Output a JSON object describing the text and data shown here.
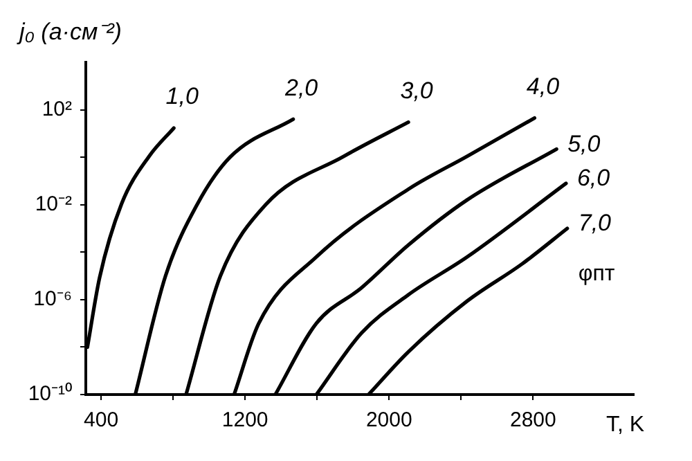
{
  "chart_data": {
    "type": "line",
    "ylabel": "j₀ (a·см⁻²)",
    "xlabel": "T, K",
    "log": "y",
    "grid": false,
    "legend": false,
    "marker": "none",
    "line_style": "solid",
    "xlim": [
      315,
      3360
    ],
    "xticks": [
      400,
      {
        "value": 800,
        "label": null
      },
      1200,
      {
        "value": 1600,
        "label": null
      },
      2000,
      {
        "value": 2400,
        "label": null
      },
      2800
    ],
    "ylim": [
      1e-10,
      10000.0
    ],
    "yticks": [
      {
        "value": 1e-10,
        "label": "10⁻¹⁰"
      },
      {
        "value": 1e-08,
        "label": null
      },
      {
        "value": 1e-06,
        "label": "10⁻⁶"
      },
      {
        "value": 0.0001,
        "label": null
      },
      {
        "value": 0.01,
        "label": "10⁻²"
      },
      {
        "value": 1,
        "label": null
      },
      {
        "value": 100,
        "label": "10²"
      }
    ],
    "annotations": [
      "φпт"
    ],
    "series": [
      {
        "name": "1,0",
        "color": "#000000",
        "x": [
          324,
          392,
          514,
          667,
          804
        ],
        "values": [
          1e-08,
          8.7e-06,
          0.011,
          1.1,
          17
        ]
      },
      {
        "name": "2,0",
        "color": "#000000",
        "x": [
          590,
          758,
          933,
          1116,
          1467
        ],
        "values": [
          1e-10,
          1e-05,
          0.01,
          1,
          40
        ]
      },
      {
        "name": "3,0",
        "color": "#000000",
        "x": [
          872,
          1063,
          1314,
          1749,
          2107
        ],
        "values": [
          1e-10,
          1e-05,
          0.01,
          1.1,
          30
        ]
      },
      {
        "name": "4,0",
        "color": "#000000",
        "x": [
          1139,
          1276,
          1596,
          2107,
          2434,
          2808
        ],
        "values": [
          1e-10,
          1e-07,
          6.3e-05,
          0.045,
          1.1,
          45
        ]
      },
      {
        "name": "5,0",
        "color": "#000000",
        "x": [
          1368,
          1596,
          1848,
          2107,
          2434,
          2930
        ],
        "values": [
          1e-10,
          1e-07,
          3.2e-06,
          0.0002,
          0.016,
          2.2
        ]
      },
      {
        "name": "6,0",
        "color": "#000000",
        "x": [
          1596,
          1848,
          2107,
          2434,
          2983
        ],
        "values": [
          1e-10,
          4e-08,
          1.6e-06,
          6.3e-05,
          0.079
        ]
      },
      {
        "name": "7,0",
        "color": "#000000",
        "x": [
          1886,
          2107,
          2434,
          2739,
          2990
        ],
        "values": [
          1e-10,
          6.3e-09,
          8.7e-07,
          3.2e-05,
          0.001
        ]
      }
    ]
  }
}
